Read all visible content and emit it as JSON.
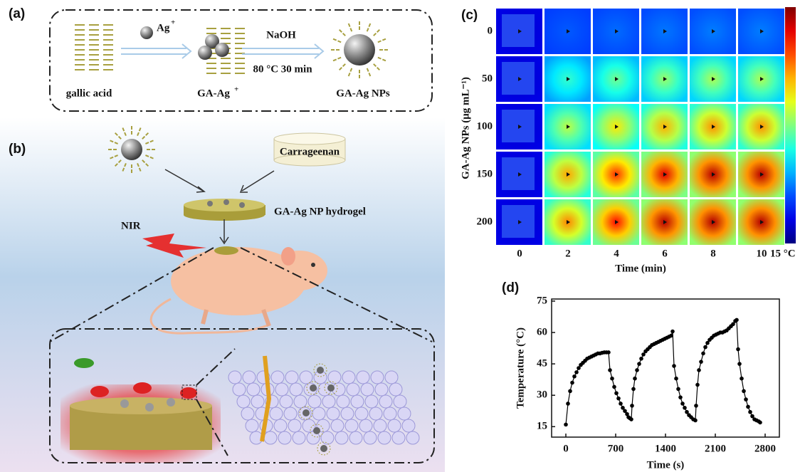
{
  "panel_a": {
    "label": "(a)",
    "ion": "Ag",
    "ion_charge": "+",
    "reagent": "NaOH",
    "condition": "80 °C 30 min",
    "stage_1": "gallic acid",
    "stage_2": "GA-Ag",
    "stage_2_charge": "+",
    "stage_3": "GA-Ag NPs"
  },
  "panel_b": {
    "label": "(b)",
    "polymer": "Carrageenan",
    "hydrogel": "GA-Ag NP hydrogel",
    "light": "NIR"
  },
  "panel_c": {
    "label": "(c)",
    "y_label": "GA-Ag NPs (μg mL⁻¹)",
    "x_label": "Time (min)",
    "rows": [
      "0",
      "50",
      "100",
      "150",
      "200"
    ],
    "columns": [
      "0",
      "2",
      "4",
      "6",
      "8",
      "10"
    ],
    "colorbar_label": "15 °C"
  },
  "chart_data": {
    "type": "line",
    "label": "(d)",
    "x_label": "Time (s)",
    "y_label": "Temperature (°C)",
    "xlim": [
      -200,
      3000
    ],
    "ylim": [
      10,
      76
    ],
    "xticks": [
      0,
      700,
      1400,
      2100,
      2800
    ],
    "yticks": [
      15,
      30,
      45,
      60,
      75
    ],
    "x": [
      0,
      30,
      60,
      90,
      120,
      150,
      180,
      210,
      240,
      270,
      300,
      330,
      360,
      390,
      420,
      450,
      480,
      510,
      540,
      570,
      600,
      620,
      650,
      680,
      710,
      740,
      770,
      800,
      830,
      860,
      880,
      900,
      920,
      930,
      950,
      970,
      1000,
      1030,
      1060,
      1090,
      1120,
      1150,
      1180,
      1210,
      1240,
      1270,
      1300,
      1330,
      1360,
      1390,
      1420,
      1450,
      1480,
      1500,
      1520,
      1550,
      1580,
      1610,
      1640,
      1670,
      1700,
      1730,
      1760,
      1790,
      1820,
      1830,
      1850,
      1870,
      1900,
      1930,
      1960,
      1990,
      2020,
      2050,
      2080,
      2110,
      2140,
      2170,
      2200,
      2230,
      2260,
      2290,
      2320,
      2350,
      2380,
      2400,
      2420,
      2440,
      2470,
      2500,
      2530,
      2560,
      2590,
      2620,
      2650,
      2680,
      2710,
      2730
    ],
    "series": [
      {
        "color": "#000000",
        "values": [
          16,
          26,
          32,
          36,
          39,
          41,
          43,
          44.5,
          45.5,
          46.5,
          47.5,
          48,
          48.5,
          49,
          49.5,
          50,
          50,
          50.3,
          50.5,
          50.5,
          50.5,
          42,
          38,
          34,
          31,
          28.5,
          26,
          24,
          22.5,
          21,
          19.5,
          19,
          18.5,
          25,
          33,
          38,
          42,
          45,
          47.5,
          49.5,
          51,
          52,
          53,
          54,
          54.5,
          55,
          55.5,
          56,
          56.5,
          57,
          57.5,
          58,
          58.5,
          60.5,
          44,
          38,
          33,
          29,
          26,
          24,
          22,
          20.5,
          19.5,
          18.5,
          18,
          25,
          35,
          42,
          46,
          50,
          53,
          55,
          56.5,
          57.5,
          58.5,
          59,
          59.5,
          60,
          60,
          60.5,
          61,
          62,
          63,
          64,
          65.5,
          66,
          52,
          45,
          38,
          32,
          28,
          24.5,
          22,
          20,
          18.5,
          18,
          17.5,
          17
        ]
      }
    ]
  }
}
